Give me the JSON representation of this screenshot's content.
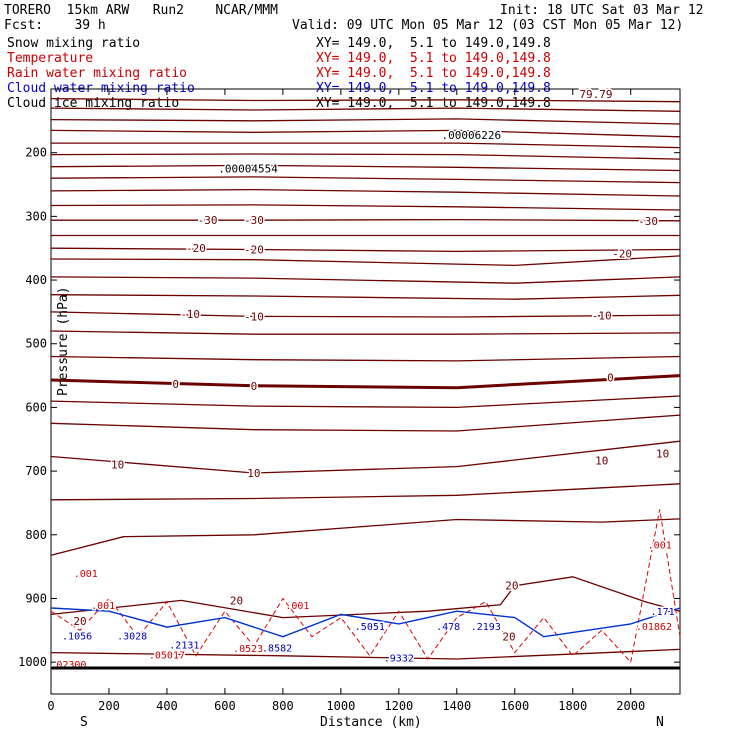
{
  "header": {
    "left_title": "TORERO  15km ARW   Run2    NCAR/MMM",
    "init": "Init: 18 UTC Sat 03 Mar 12",
    "fcst": "Fcst:    39 h",
    "valid": "Valid: 09 UTC Mon 05 Mar 12 (03 CST Mon 05 Mar 12)"
  },
  "fields": [
    {
      "name": "Snow mixing ratio",
      "xy": "XY= 149.0,  5.1 to 149.0,149.8",
      "color": "#000000"
    },
    {
      "name": "Temperature",
      "xy": "XY= 149.0,  5.1 to 149.0,149.8",
      "color": "#cc0000"
    },
    {
      "name": "Rain water mixing ratio",
      "xy": "XY= 149.0,  5.1 to 149.0,149.8",
      "color": "#cc0000"
    },
    {
      "name": "Cloud water mixing ratio",
      "xy": "XY= 149.0,  5.1 to 149.0,149.8",
      "color": "#0000cc"
    },
    {
      "name": "Cloud ice mixing ratio",
      "xy": "XY= 149.0,  5.1 to 149.0,149.8",
      "color": "#000000"
    }
  ],
  "chart_data": {
    "type": "line",
    "xlabel": "Distance (km)",
    "ylabel": "Pressure (hPa)",
    "xlim": [
      0,
      2170
    ],
    "ylim": [
      100,
      1050
    ],
    "x_ticks": [
      0,
      200,
      400,
      600,
      800,
      1000,
      1200,
      1400,
      1600,
      1800,
      2000
    ],
    "y_ticks": [
      200,
      300,
      400,
      500,
      600,
      700,
      800,
      900,
      1000
    ],
    "x_end_labels": {
      "left": "S",
      "right": "N"
    },
    "temperature_isotherms": [
      {
        "points": [
          [
            0,
            115
          ],
          [
            700,
            118
          ],
          [
            1400,
            117
          ],
          [
            2170,
            120
          ]
        ]
      },
      {
        "points": [
          [
            0,
            130
          ],
          [
            700,
            133
          ],
          [
            1400,
            130
          ],
          [
            2170,
            135
          ]
        ]
      },
      {
        "points": [
          [
            0,
            148
          ],
          [
            700,
            150
          ],
          [
            1400,
            147
          ],
          [
            2170,
            155
          ]
        ]
      },
      {
        "points": [
          [
            0,
            165
          ],
          [
            700,
            168
          ],
          [
            1400,
            165
          ],
          [
            2170,
            175
          ]
        ]
      },
      {
        "points": [
          [
            0,
            185
          ],
          [
            700,
            185
          ],
          [
            1400,
            185
          ],
          [
            2170,
            192
          ]
        ]
      },
      {
        "points": [
          [
            0,
            203
          ],
          [
            700,
            202
          ],
          [
            1400,
            203
          ],
          [
            2170,
            210
          ]
        ]
      },
      {
        "points": [
          [
            0,
            222
          ],
          [
            700,
            220
          ],
          [
            1400,
            223
          ],
          [
            2170,
            228
          ]
        ]
      },
      {
        "points": [
          [
            0,
            240
          ],
          [
            700,
            238
          ],
          [
            1400,
            242
          ],
          [
            2170,
            247
          ]
        ]
      },
      {
        "points": [
          [
            0,
            260
          ],
          [
            700,
            258
          ],
          [
            1400,
            262
          ],
          [
            2170,
            268
          ]
        ]
      },
      {
        "points": [
          [
            0,
            283
          ],
          [
            700,
            282
          ],
          [
            1400,
            285
          ],
          [
            2170,
            290
          ]
        ]
      },
      {
        "points": [
          [
            0,
            306
          ],
          [
            700,
            306
          ],
          [
            1400,
            305
          ],
          [
            2170,
            307
          ]
        ]
      },
      {
        "points": [
          [
            0,
            330
          ],
          [
            700,
            330
          ],
          [
            1400,
            330
          ],
          [
            2170,
            330
          ]
        ]
      },
      {
        "points": [
          [
            0,
            350
          ],
          [
            700,
            352
          ],
          [
            1400,
            355
          ],
          [
            2170,
            352
          ]
        ]
      },
      {
        "points": [
          [
            0,
            367
          ],
          [
            700,
            368
          ],
          [
            1600,
            377
          ],
          [
            2170,
            362
          ]
        ]
      },
      {
        "points": [
          [
            0,
            395
          ],
          [
            700,
            397
          ],
          [
            1600,
            405
          ],
          [
            2170,
            395
          ]
        ]
      },
      {
        "points": [
          [
            0,
            423
          ],
          [
            700,
            425
          ],
          [
            1600,
            430
          ],
          [
            2170,
            424
          ]
        ]
      },
      {
        "points": [
          [
            0,
            450
          ],
          [
            700,
            457
          ],
          [
            1400,
            458
          ],
          [
            2170,
            455
          ]
        ]
      },
      {
        "points": [
          [
            0,
            480
          ],
          [
            700,
            485
          ],
          [
            1400,
            485
          ],
          [
            2170,
            483
          ]
        ]
      },
      {
        "points": [
          [
            0,
            520
          ],
          [
            700,
            525
          ],
          [
            1400,
            527
          ],
          [
            2170,
            520
          ]
        ]
      },
      {
        "points": [
          [
            0,
            557
          ],
          [
            700,
            566
          ],
          [
            1400,
            569
          ],
          [
            2170,
            550
          ]
        ],
        "bold": true
      },
      {
        "points": [
          [
            0,
            590
          ],
          [
            700,
            598
          ],
          [
            1400,
            600
          ],
          [
            2170,
            582
          ]
        ]
      },
      {
        "points": [
          [
            0,
            625
          ],
          [
            700,
            635
          ],
          [
            1400,
            637
          ],
          [
            2170,
            612
          ]
        ]
      },
      {
        "points": [
          [
            0,
            677
          ],
          [
            700,
            703
          ],
          [
            1400,
            693
          ],
          [
            2170,
            653
          ]
        ]
      },
      {
        "points": [
          [
            0,
            745
          ],
          [
            700,
            743
          ],
          [
            1400,
            738
          ],
          [
            2170,
            720
          ]
        ]
      },
      {
        "points": [
          [
            0,
            832
          ],
          [
            250,
            803
          ],
          [
            700,
            800
          ],
          [
            1400,
            776
          ],
          [
            1900,
            780
          ],
          [
            2170,
            775
          ]
        ]
      },
      {
        "points": [
          [
            0,
            925
          ],
          [
            450,
            903
          ],
          [
            800,
            930
          ],
          [
            1300,
            920
          ],
          [
            1550,
            910
          ],
          [
            1600,
            880
          ],
          [
            1800,
            866
          ],
          [
            2050,
            905
          ],
          [
            2170,
            920
          ]
        ]
      },
      {
        "points": [
          [
            0,
            985
          ],
          [
            800,
            990
          ],
          [
            1400,
            995
          ],
          [
            2170,
            980
          ]
        ]
      }
    ],
    "temperature_labels": [
      {
        "text": "-30",
        "x": 540,
        "y": 306
      },
      {
        "text": "-30",
        "x": 700,
        "y": 306
      },
      {
        "text": "-30",
        "x": 2060,
        "y": 307
      },
      {
        "text": "-20",
        "x": 500,
        "y": 350
      },
      {
        "text": "-20",
        "x": 700,
        "y": 352
      },
      {
        "text": "-20",
        "x": 1970,
        "y": 358
      },
      {
        "text": "-10",
        "x": 480,
        "y": 453
      },
      {
        "text": "-10",
        "x": 700,
        "y": 457
      },
      {
        "text": "-10",
        "x": 1900,
        "y": 456
      },
      {
        "text": "0",
        "x": 430,
        "y": 563
      },
      {
        "text": "0",
        "x": 700,
        "y": 566
      },
      {
        "text": "0",
        "x": 1930,
        "y": 553
      },
      {
        "text": "10",
        "x": 230,
        "y": 690
      },
      {
        "text": "10",
        "x": 700,
        "y": 703
      },
      {
        "text": "10",
        "x": 1900,
        "y": 683
      },
      {
        "text": "10",
        "x": 2110,
        "y": 672
      },
      {
        "text": "20",
        "x": 640,
        "y": 903
      },
      {
        "text": "20",
        "x": 1590,
        "y": 880
      },
      {
        "text": "20",
        "x": 100,
        "y": 935
      },
      {
        "text": "20",
        "x": 1580,
        "y": 960
      }
    ],
    "snow_maxima": [
      {
        "label": ".00006226",
        "x": 1450,
        "y": 172
      },
      {
        "label": ".00004554",
        "x": 680,
        "y": 225
      }
    ],
    "ice_maximum_label": {
      "text": "79.79",
      "x": 1880,
      "y": 108
    },
    "rain_labels": [
      {
        "text": ".001",
        "x": 120,
        "y": 860
      },
      {
        "text": ".001",
        "x": 180,
        "y": 910
      },
      {
        "text": ".001",
        "x": 850,
        "y": 910
      },
      {
        "text": ".001",
        "x": 2100,
        "y": 815
      },
      {
        "text": ".05017",
        "x": 400,
        "y": 988
      },
      {
        "text": ".02300",
        "x": 60,
        "y": 1003
      },
      {
        "text": ".0523",
        "x": 680,
        "y": 978
      },
      {
        "text": ".01862",
        "x": 2080,
        "y": 943
      }
    ],
    "cloud_labels": [
      {
        "text": ".1056",
        "x": 90,
        "y": 958
      },
      {
        "text": ".3028",
        "x": 280,
        "y": 958
      },
      {
        "text": ".2131",
        "x": 460,
        "y": 972
      },
      {
        "text": ".8582",
        "x": 780,
        "y": 977
      },
      {
        "text": ".5051",
        "x": 1100,
        "y": 943
      },
      {
        "text": ".478",
        "x": 1370,
        "y": 943
      },
      {
        "text": ".2193",
        "x": 1500,
        "y": 943
      },
      {
        "text": ".9332",
        "x": 1200,
        "y": 993
      },
      {
        "text": ".171",
        "x": 2110,
        "y": 920
      }
    ]
  }
}
